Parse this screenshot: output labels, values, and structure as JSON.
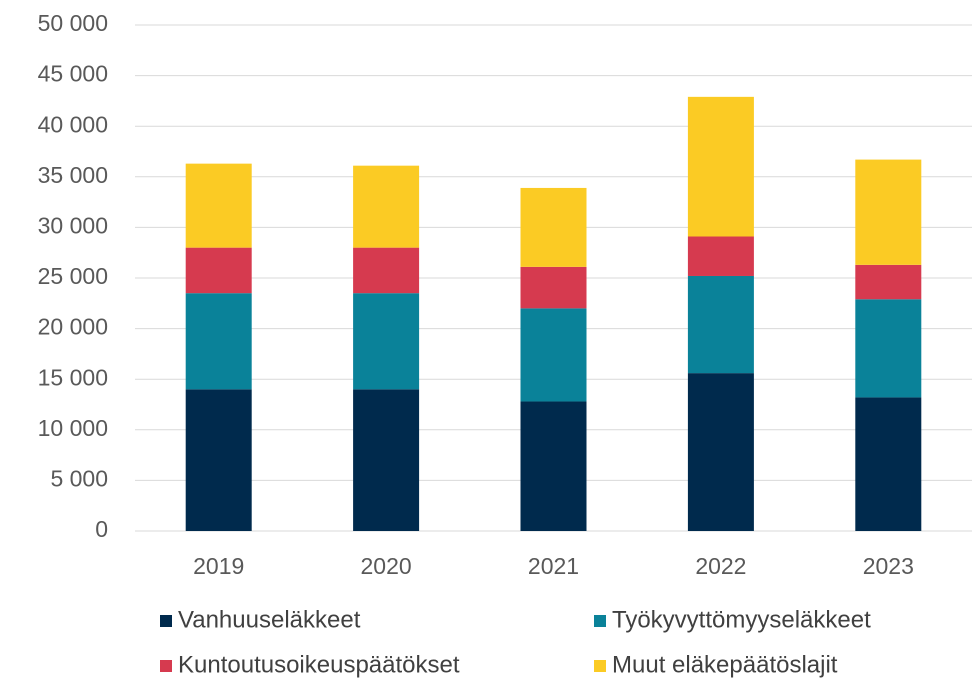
{
  "chart_data": {
    "type": "stacked_bar",
    "categories": [
      "2019",
      "2020",
      "2021",
      "2022",
      "2023"
    ],
    "series": [
      {
        "name": "Vanhuuseläkkeet",
        "color": "#002a4d",
        "values": [
          14000,
          14000,
          12800,
          15600,
          13200
        ]
      },
      {
        "name": "Työkyvyttömyyseläkkeet",
        "color": "#0a8299",
        "values": [
          9500,
          9500,
          9200,
          9600,
          9700
        ]
      },
      {
        "name": "Kuntoutusoikeuspäätökset",
        "color": "#d63a4f",
        "values": [
          4500,
          4500,
          4100,
          3900,
          3400
        ]
      },
      {
        "name": "Muut eläkepäätöslajit",
        "color": "#fbcb24",
        "values": [
          8300,
          8100,
          7800,
          13800,
          10400
        ]
      }
    ],
    "ylim": [
      0,
      50000
    ],
    "yticks": [
      0,
      {
        "value": 5000,
        "label": "5 000"
      },
      {
        "value": 10000,
        "label": "10 000"
      },
      {
        "value": 15000,
        "label": "15 000"
      },
      {
        "value": 20000,
        "label": "20 000"
      },
      {
        "value": 25000,
        "label": "25 000"
      },
      {
        "value": 30000,
        "label": "30 000"
      },
      {
        "value": 35000,
        "label": "35 000"
      },
      {
        "value": 40000,
        "label": "40 000"
      },
      {
        "value": 45000,
        "label": "45 000"
      },
      {
        "value": 50000,
        "label": "50 000"
      }
    ],
    "grid": true,
    "legend": "bottom"
  }
}
